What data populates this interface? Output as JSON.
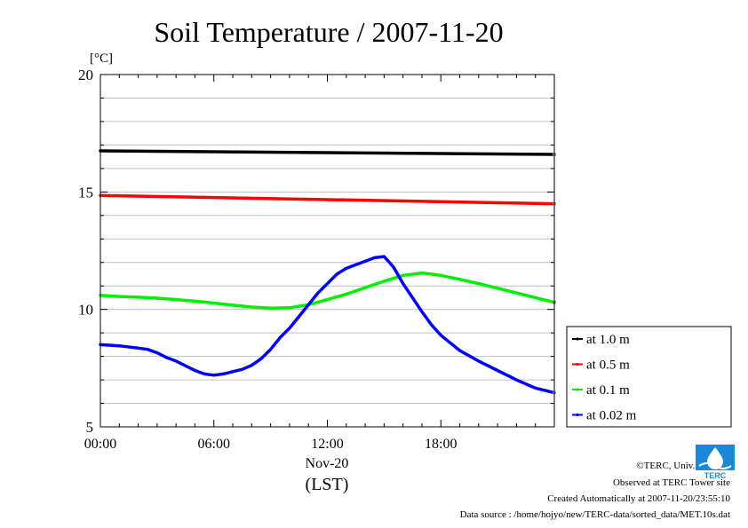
{
  "chart_data": {
    "type": "line",
    "title": "Soil Temperature / 2007-11-20",
    "yunit": "[°C]",
    "ylim": [
      5,
      20
    ],
    "yticks": [
      5,
      10,
      15,
      20
    ],
    "xlim": [
      0,
      24
    ],
    "xtick_values": [
      0,
      6,
      12,
      18
    ],
    "xtick_labels": [
      "00:00",
      "06:00",
      "12:00",
      "18:00"
    ],
    "xdate_label": "Nov-20",
    "xlabel": "(LST)",
    "grid": true,
    "legend_position": "right",
    "series": [
      {
        "name": "at 1.0 m",
        "color": "#000000",
        "x": [
          0,
          24
        ],
        "values": [
          16.75,
          16.6
        ]
      },
      {
        "name": "at 0.5 m",
        "color": "#ff0000",
        "x": [
          0,
          24
        ],
        "values": [
          14.85,
          14.5
        ]
      },
      {
        "name": "at 0.1 m",
        "color": "#00ee00",
        "x": [
          0,
          1,
          2,
          3,
          4,
          5,
          6,
          7,
          8,
          9,
          10,
          11,
          12,
          13,
          14,
          15,
          16,
          17,
          18,
          19,
          20,
          21,
          22,
          23,
          24
        ],
        "values": [
          10.6,
          10.55,
          10.52,
          10.48,
          10.42,
          10.35,
          10.27,
          10.18,
          10.1,
          10.05,
          10.07,
          10.2,
          10.42,
          10.65,
          10.93,
          11.2,
          11.45,
          11.55,
          11.45,
          11.28,
          11.1,
          10.9,
          10.7,
          10.5,
          10.3
        ]
      },
      {
        "name": "at 0.02 m",
        "color": "#0000ff",
        "x": [
          0,
          1,
          2,
          2.5,
          3,
          3.5,
          4,
          4.5,
          5,
          5.5,
          6,
          6.5,
          7,
          7.5,
          8,
          8.5,
          9,
          9.5,
          10,
          10.5,
          11,
          11.5,
          12,
          12.5,
          13,
          13.5,
          14,
          14.5,
          15,
          15.5,
          16,
          16.5,
          17,
          17.5,
          18,
          19,
          20,
          21,
          22,
          23,
          24
        ],
        "values": [
          8.5,
          8.45,
          8.35,
          8.3,
          8.15,
          7.95,
          7.8,
          7.6,
          7.4,
          7.25,
          7.2,
          7.25,
          7.35,
          7.45,
          7.62,
          7.9,
          8.3,
          8.8,
          9.2,
          9.7,
          10.2,
          10.7,
          11.1,
          11.5,
          11.75,
          11.9,
          12.05,
          12.2,
          12.25,
          11.8,
          11.1,
          10.5,
          9.9,
          9.35,
          8.9,
          8.25,
          7.8,
          7.4,
          7.0,
          6.65,
          6.45
        ]
      }
    ]
  },
  "footer": {
    "copyright": "©TERC, Univ. Tsukuba",
    "site": "Observed at TERC Tower site",
    "created": "Created Automatically at 2007-11-20/23:55:10",
    "source": "Data source : /home/hojyo/new/TERC-data/sorted_data/MET.10s.dat"
  },
  "logo": {
    "icon": "terc-logo-icon",
    "text": "TERC",
    "color": "#1a8ad6"
  }
}
